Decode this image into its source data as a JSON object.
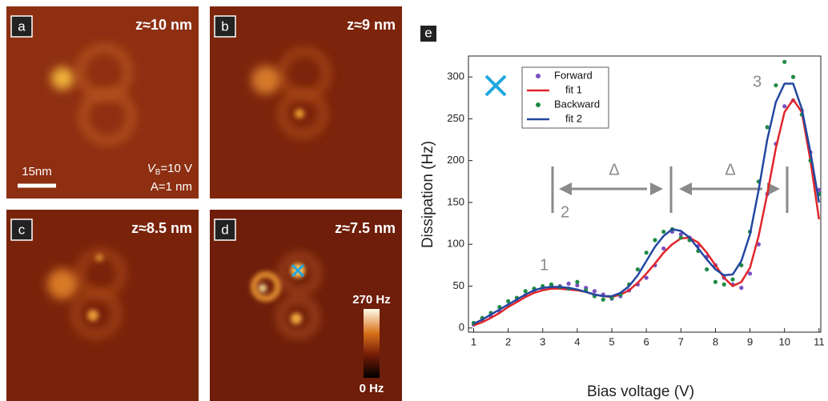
{
  "panels": [
    {
      "label": "a",
      "title": "z≈10 nm"
    },
    {
      "label": "b",
      "title": "z≈9 nm"
    },
    {
      "label": "c",
      "title": "z≈8.5 nm"
    },
    {
      "label": "d",
      "title": "z≈7.5 nm"
    }
  ],
  "scale_bar": "15nm",
  "bias_note": {
    "symbol": "V",
    "sub": "B",
    "rest": "=10 V"
  },
  "amplitude_note": "A=1 nm",
  "colorbar": {
    "max_label": "270 Hz",
    "min_label": "0 Hz"
  },
  "chart_data": {
    "type": "line",
    "panel_label": "e",
    "xlabel": "Bias voltage (V)",
    "ylabel": "Dissipation (Hz)",
    "xlim": [
      0.85,
      11.05
    ],
    "ylim": [
      -5,
      325
    ],
    "xticks": [
      1,
      2,
      3,
      4,
      5,
      6,
      7,
      8,
      9,
      10,
      11
    ],
    "yticks": [
      0,
      50,
      100,
      150,
      200,
      250,
      300
    ],
    "annotations": [
      "1",
      "2",
      "3",
      "Δ",
      "Δ"
    ],
    "x": [
      1,
      1.25,
      1.5,
      1.75,
      2,
      2.25,
      2.5,
      2.75,
      3,
      3.25,
      3.5,
      3.75,
      4,
      4.25,
      4.5,
      4.75,
      5,
      5.25,
      5.5,
      5.75,
      6,
      6.25,
      6.5,
      6.75,
      7,
      7.25,
      7.5,
      7.75,
      8,
      8.25,
      8.5,
      8.75,
      9,
      9.25,
      9.5,
      9.75,
      10,
      10.25,
      10.5,
      10.75,
      11
    ],
    "series": [
      {
        "name": "Forward",
        "kind": "markers",
        "color": "#7a4fc0",
        "values": [
          4,
          9,
          14,
          20,
          27,
          33,
          39,
          44,
          47,
          50,
          50,
          53,
          51,
          48,
          44,
          40,
          35,
          38,
          45,
          52,
          60,
          75,
          95,
          115,
          112,
          108,
          98,
          85,
          75,
          60,
          52,
          48,
          65,
          100,
          160,
          220,
          265,
          272,
          260,
          210,
          165
        ]
      },
      {
        "name": "fit 1",
        "kind": "line",
        "color": "#e0262a",
        "values": [
          3,
          7,
          12,
          18,
          25,
          31,
          37,
          42,
          45,
          47,
          47,
          46,
          45,
          43,
          40,
          38,
          37,
          40,
          45,
          54,
          65,
          77,
          90,
          100,
          107,
          108,
          102,
          90,
          75,
          60,
          50,
          55,
          72,
          110,
          160,
          215,
          258,
          273,
          258,
          200,
          130
        ]
      },
      {
        "name": "Backward",
        "kind": "markers",
        "color": "#1f8a45",
        "values": [
          6,
          12,
          18,
          25,
          32,
          36,
          44,
          47,
          50,
          52,
          49,
          47,
          55,
          45,
          38,
          34,
          36,
          40,
          52,
          70,
          90,
          105,
          115,
          118,
          108,
          105,
          92,
          70,
          55,
          52,
          58,
          75,
          115,
          175,
          240,
          290,
          318,
          300,
          255,
          200,
          160
        ]
      },
      {
        "name": "fit 2",
        "kind": "line",
        "color": "#2347a0",
        "values": [
          5,
          10,
          16,
          22,
          28,
          34,
          40,
          45,
          48,
          49,
          49,
          48,
          46,
          43,
          40,
          38,
          38,
          42,
          50,
          63,
          80,
          97,
          110,
          118,
          116,
          108,
          95,
          82,
          70,
          63,
          64,
          80,
          112,
          165,
          225,
          270,
          292,
          292,
          262,
          210,
          150
        ]
      }
    ]
  }
}
